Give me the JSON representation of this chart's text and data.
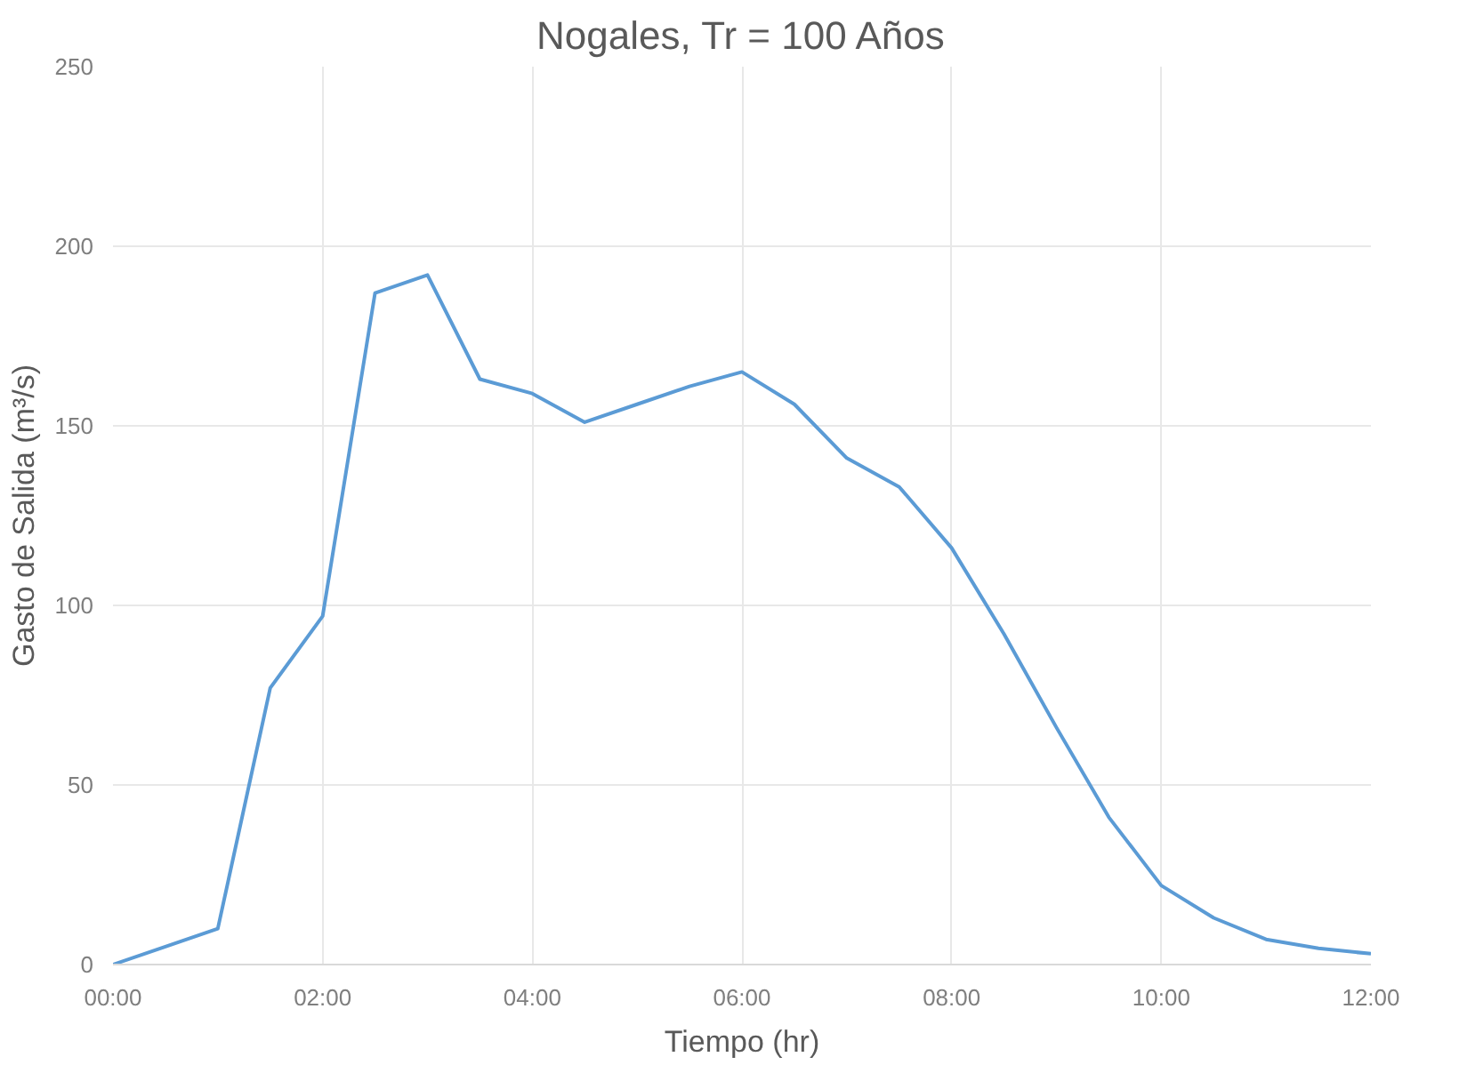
{
  "chart_data": {
    "type": "line",
    "title": "Nogales, Tr = 100 Años",
    "xlabel": "Tiempo (hr)",
    "ylabel": "Gasto de Salida (m³/s)",
    "x": [
      0,
      0.5,
      1,
      1.5,
      2,
      2.5,
      3,
      3.5,
      4,
      4.5,
      5,
      5.5,
      6,
      6.5,
      7,
      7.5,
      8,
      8.5,
      9,
      9.5,
      10,
      10.5,
      11,
      11.5,
      12
    ],
    "series": [
      {
        "color": "#5b9bd5",
        "values": [
          0,
          5,
          10,
          77,
          97,
          187,
          192,
          163,
          159,
          151,
          156,
          161,
          165,
          156,
          141,
          133,
          116,
          92,
          66,
          41,
          22,
          13,
          7,
          4.5,
          3
        ]
      }
    ],
    "xlim": [
      0,
      12
    ],
    "ylim": [
      0,
      250
    ],
    "xticks": [
      {
        "value": 0,
        "label": "00:00"
      },
      {
        "value": 2,
        "label": "02:00"
      },
      {
        "value": 4,
        "label": "04:00"
      },
      {
        "value": 6,
        "label": "06:00"
      },
      {
        "value": 8,
        "label": "08:00"
      },
      {
        "value": 10,
        "label": "10:00"
      },
      {
        "value": 12,
        "label": "12:00"
      }
    ],
    "yticks": [
      0,
      50,
      100,
      150,
      200,
      250
    ],
    "grid": true,
    "marker": "none",
    "line_style": "solid"
  }
}
